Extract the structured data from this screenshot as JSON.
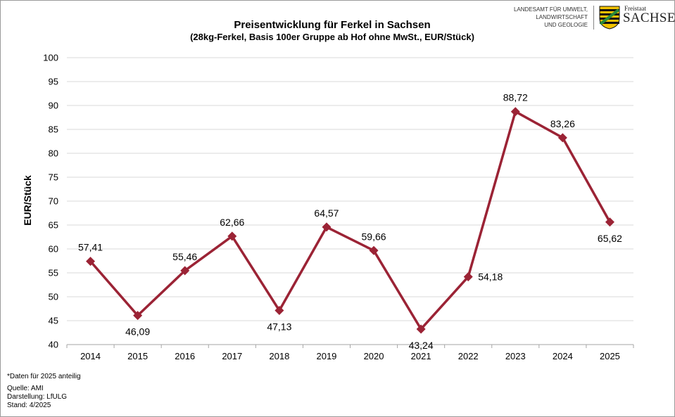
{
  "logo": {
    "agency_lines": [
      "LANDESAMT FÜR UMWELT,",
      "LANDWIRTSCHAFT",
      "UND GEOLOGIE"
    ],
    "freistaat": "Freistaat",
    "sachsen": "SACHSEN",
    "colors": {
      "green": "#2a8a3a",
      "yellow": "#f2c200",
      "black": "#111111"
    }
  },
  "footer": {
    "note": "*Daten  für 2025 anteilig",
    "source": "Quelle:  AMI",
    "made_by": "Darstellung: LfULG",
    "date": "Stand: 4/2025"
  },
  "chart_data": {
    "type": "line",
    "title": "Preisentwicklung für Ferkel in Sachsen",
    "subtitle": "(28kg-Ferkel, Basis 100er Gruppe ab Hof ohne MwSt., EUR/Stück)",
    "xlabel": "",
    "ylabel": "EUR/Stück",
    "categories": [
      "2014",
      "2015",
      "2016",
      "2017",
      "2018",
      "2019",
      "2020",
      "2021",
      "2022",
      "2023",
      "2024",
      "2025"
    ],
    "series": [
      {
        "values": [
          57.41,
          46.09,
          55.46,
          62.66,
          47.13,
          64.57,
          59.66,
          43.24,
          54.18,
          88.72,
          83.26,
          65.62
        ],
        "labels": [
          "57,41",
          "46,09",
          "55,46",
          "62,66",
          "47,13",
          "64,57",
          "59,66",
          "43,24",
          "54,18",
          "88,72",
          "83,26",
          "65,62"
        ],
        "color": "#9b2335"
      }
    ],
    "ylim": [
      40,
      100
    ],
    "yticks": [
      40,
      45,
      50,
      55,
      60,
      65,
      70,
      75,
      80,
      85,
      90,
      95,
      100
    ],
    "grid": true,
    "grid_color": "#d9d9d9",
    "legend": "none"
  }
}
